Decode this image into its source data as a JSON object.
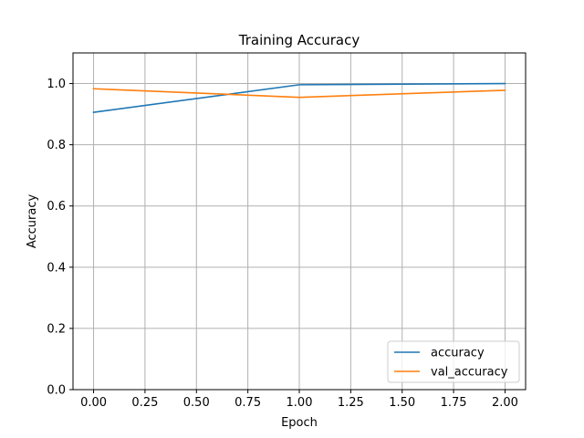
{
  "chart_data": {
    "type": "line",
    "title": "Training Accuracy",
    "xlabel": "Epoch",
    "ylabel": "Accuracy",
    "x": [
      0,
      1,
      2
    ],
    "series": [
      {
        "name": "accuracy",
        "values": [
          0.906,
          0.996,
          1.0
        ],
        "color": "#1f77b4"
      },
      {
        "name": "val_accuracy",
        "values": [
          0.983,
          0.955,
          0.978
        ],
        "color": "#ff7f0e"
      }
    ],
    "xlim": [
      -0.1,
      2.1
    ],
    "ylim": [
      0.0,
      1.1
    ],
    "xticks": [
      0.0,
      0.25,
      0.5,
      0.75,
      1.0,
      1.25,
      1.5,
      1.75,
      2.0
    ],
    "xtick_labels": [
      "0.00",
      "0.25",
      "0.50",
      "0.75",
      "1.00",
      "1.25",
      "1.50",
      "1.75",
      "2.00"
    ],
    "yticks": [
      0.0,
      0.2,
      0.4,
      0.6,
      0.8,
      1.0
    ],
    "ytick_labels": [
      "0.0",
      "0.2",
      "0.4",
      "0.6",
      "0.8",
      "1.0"
    ],
    "grid": true,
    "legend_position": "lower-right"
  }
}
